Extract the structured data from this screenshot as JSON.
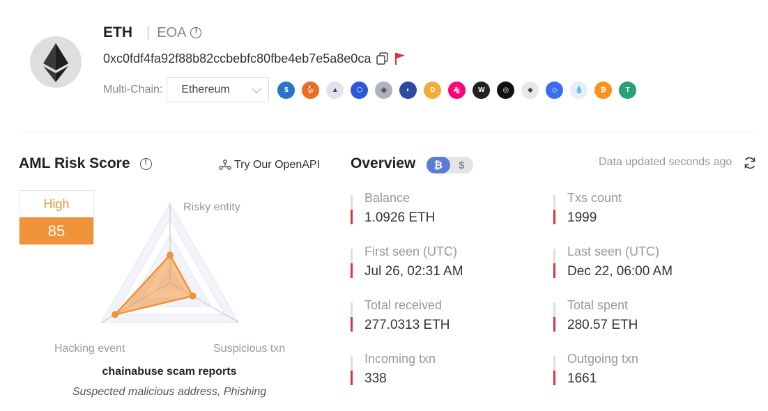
{
  "header": {
    "chain": "ETH",
    "account_type": "EOA",
    "address": "0xc0fdf4fa92f88b82ccbebfc80fbe4eb7e5a8e0ca",
    "multichain_label": "Multi-Chain:",
    "selected_chain": "Ethereum",
    "tokens": [
      {
        "name": "usdc-icon",
        "color": "#2775ca",
        "glyph": "$"
      },
      {
        "name": "shib-icon",
        "color": "#f26a21",
        "glyph": "🐕"
      },
      {
        "name": "arb-icon",
        "color": "#e2e2ee",
        "glyph": "▲"
      },
      {
        "name": "chainlink-icon",
        "color": "#2a5ada",
        "glyph": "⬡"
      },
      {
        "name": "coin-icon",
        "color": "#b0b0c0",
        "glyph": "◉"
      },
      {
        "name": "sushi-icon",
        "color": "#2c4aa0",
        "glyph": "◐"
      },
      {
        "name": "dai-icon",
        "color": "#f5ac37",
        "glyph": "D"
      },
      {
        "name": "uni-icon",
        "color": "#ff007a",
        "glyph": "🦄"
      },
      {
        "name": "weth-icon",
        "color": "#222222",
        "glyph": "W"
      },
      {
        "name": "eye-icon",
        "color": "#111111",
        "glyph": "◎"
      },
      {
        "name": "eth-token-icon",
        "color": "#e8e8e8",
        "glyph": "◆"
      },
      {
        "name": "link-icon",
        "color": "#3c6cf0",
        "glyph": "◇"
      },
      {
        "name": "drop-icon",
        "color": "#e8edf7",
        "glyph": "💧"
      },
      {
        "name": "btc-token-icon",
        "color": "#f7931a",
        "glyph": "₿"
      },
      {
        "name": "usdt-icon",
        "color": "#26a17b",
        "glyph": "T"
      }
    ]
  },
  "aml": {
    "title": "AML Risk Score",
    "openapi_label": "Try Our OpenAPI",
    "level": "High",
    "score": "85",
    "axes": [
      "Risky entity",
      "Suspicious txn",
      "Hacking event"
    ],
    "radar_values": {
      "risky_entity": 0.35,
      "suspicious_txn": 0.33,
      "hacking_event": 0.8
    },
    "report_title": "chainabuse scam reports",
    "report_tags": "Suspected malicious address, Phishing",
    "accent": "#f0923a"
  },
  "overview": {
    "title": "Overview",
    "currency_options": [
      "₿",
      "$"
    ],
    "updated": "Data updated seconds ago",
    "stats": [
      {
        "label": "Balance",
        "value": "1.0926 ETH"
      },
      {
        "label": "Txs count",
        "value": "1999"
      },
      {
        "label": "First seen (UTC)",
        "value": "Jul 26, 02:31 AM"
      },
      {
        "label": "Last seen (UTC)",
        "value": "Dec 22, 06:00 AM"
      },
      {
        "label": "Total received",
        "value": "277.0313 ETH"
      },
      {
        "label": "Total spent",
        "value": "280.57 ETH"
      },
      {
        "label": "Incoming txn",
        "value": "338"
      },
      {
        "label": "Outgoing txn",
        "value": "1661"
      }
    ]
  }
}
